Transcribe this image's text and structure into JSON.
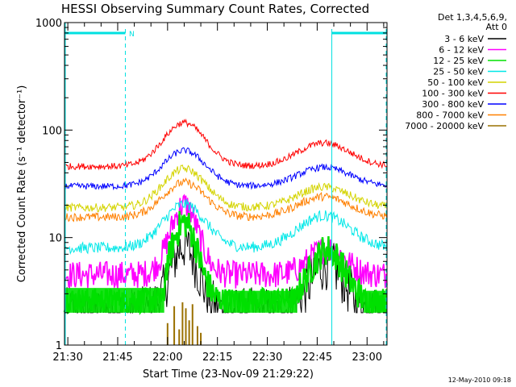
{
  "chart_data": {
    "type": "line",
    "title": "HESSI Observing Summary Count Rates, Corrected",
    "xlabel": "Start Time (23-Nov-09 21:29:22)",
    "ylabel": "Corrected Count Rate (s⁻¹ detector⁻¹)",
    "y_scale": "log",
    "ylim": [
      1,
      1000
    ],
    "xlim": [
      "21:29",
      "23:06"
    ],
    "y_ticks": [
      1,
      10,
      100,
      1000
    ],
    "y_tick_labels": [
      "1",
      "10",
      "100",
      "1000"
    ],
    "x_ticks": [
      "21:30",
      "21:45",
      "22:00",
      "22:15",
      "22:30",
      "22:45",
      "23:00"
    ],
    "x_ticks_minutes": [
      1,
      16,
      31,
      46,
      61,
      76,
      91
    ],
    "x_range_minutes": [
      0,
      97
    ],
    "legend_header": [
      "Det 1,3,4,5,6,9,",
      "Att 0"
    ],
    "legend_position": "right",
    "footer": "12-May-2010 09:18",
    "annotations": [
      {
        "text": "N",
        "x_minutes": 19.5
      }
    ],
    "night_intervals": [
      {
        "start_minutes": 0,
        "end_minutes": 18.3
      },
      {
        "start_minutes": 80.4,
        "end_minutes": 97
      }
    ],
    "daylight_boundaries_minutes": [
      0,
      18.3,
      80.4,
      97
    ],
    "series": [
      {
        "name": "3 - 6 keV",
        "color": "#000000",
        "base": 2.0,
        "peak1": 4.2,
        "peak2": 2.8,
        "noise": 0.55,
        "floor": 2.0
      },
      {
        "name": "6 - 12 keV",
        "color": "#ff00ff",
        "base": 4.5,
        "peak1": 4.5,
        "peak2": 1.75,
        "noise": 0.3
      },
      {
        "name": "12 - 25 keV",
        "color": "#00e000",
        "base": 2.4,
        "peak1": 5.8,
        "peak2": 3.2,
        "noise": 0.35,
        "floor": 2.0
      },
      {
        "name": "25 - 50 keV",
        "color": "#00e8e8",
        "base": 8.0,
        "peak1": 2.55,
        "peak2": 2.0,
        "noise": 0.12
      },
      {
        "name": "50 - 100 keV",
        "color": "#d4d400",
        "base": 19.0,
        "peak1": 2.3,
        "peak2": 1.55,
        "noise": 0.09
      },
      {
        "name": "100 - 300 keV",
        "color": "#ff0000",
        "base": 46.0,
        "peak1": 2.55,
        "peak2": 1.65,
        "noise": 0.07
      },
      {
        "name": "300 - 800 keV",
        "color": "#0000ff",
        "base": 30.0,
        "peak1": 2.15,
        "peak2": 1.5,
        "noise": 0.07
      },
      {
        "name": "800 - 7000 keV",
        "color": "#ff8000",
        "base": 15.5,
        "peak1": 2.1,
        "peak2": 1.55,
        "noise": 0.09
      },
      {
        "name": "7000 - 20000 keV",
        "color": "#9a7000",
        "base": 1.0,
        "peak1": 1.0,
        "peak2": 1.0,
        "noise": 0.0
      }
    ]
  }
}
